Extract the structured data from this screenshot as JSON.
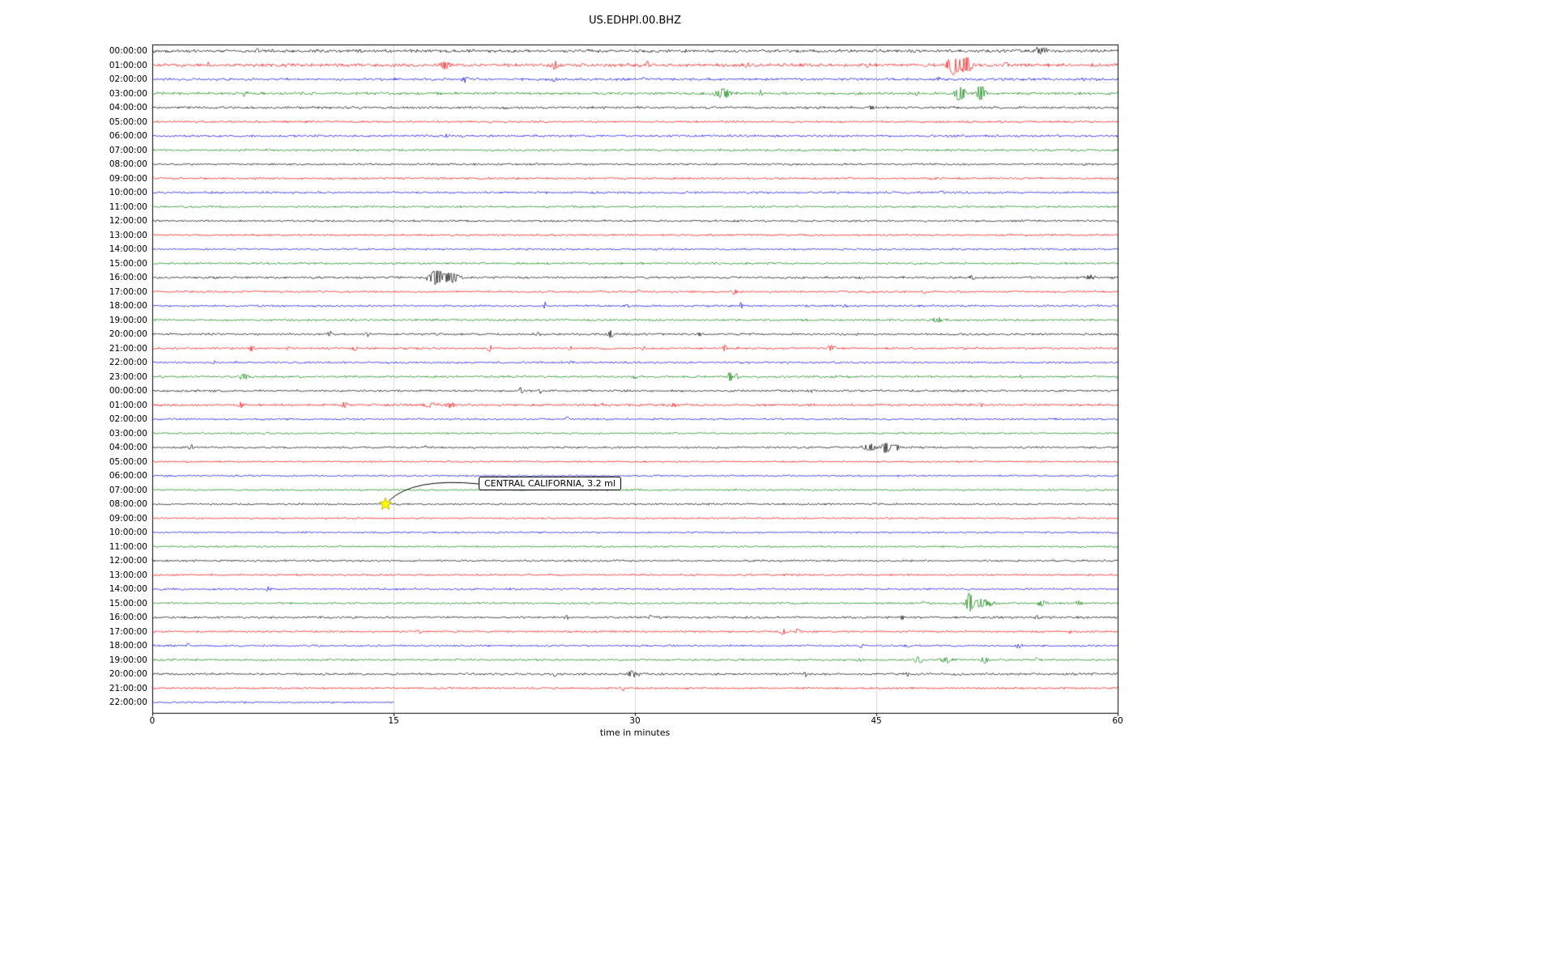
{
  "chart_data": {
    "type": "line",
    "subtype": "helicorder-dayplot",
    "title": "US.EDHPI.00.BHZ",
    "xlabel": "time in minutes",
    "x_range": [
      0,
      60
    ],
    "x_ticks": [
      0,
      15,
      30,
      45,
      60
    ],
    "grid_minutes": [
      15,
      30,
      45
    ],
    "grid_color": "#d9d9d9",
    "frame_color": "#000000",
    "colors": {
      "black": "#000000",
      "red": "#ff0000",
      "blue": "#0000ff",
      "green": "#008000"
    },
    "color_cycle": [
      "black",
      "red",
      "blue",
      "green"
    ],
    "rows": [
      {
        "label": "00:00:00",
        "color": "black",
        "noise": 1.5,
        "events": [
          [
            6.5,
            4,
            0.06
          ],
          [
            55.2,
            5,
            0.3
          ]
        ]
      },
      {
        "label": "01:00:00",
        "color": "red",
        "noise": 1.6,
        "events": [
          [
            3.5,
            4,
            0.08
          ],
          [
            18.2,
            5,
            0.2
          ],
          [
            25,
            5,
            0.15
          ],
          [
            30.8,
            4,
            0.1
          ],
          [
            37,
            4,
            0.1
          ],
          [
            40.3,
            3,
            0.1
          ],
          [
            44.5,
            3,
            0.1
          ],
          [
            49.8,
            14,
            0.25
          ],
          [
            50.6,
            9,
            0.3
          ],
          [
            53,
            3,
            0.2
          ]
        ]
      },
      {
        "label": "02:00:00",
        "color": "blue",
        "noise": 1.3,
        "events": [
          [
            19.5,
            4,
            0.15
          ],
          [
            25,
            3,
            0.1
          ],
          [
            30.5,
            2,
            0.1
          ],
          [
            48.8,
            3,
            0.1
          ]
        ]
      },
      {
        "label": "03:00:00",
        "color": "green",
        "noise": 1.3,
        "events": [
          [
            5.8,
            3,
            0.15
          ],
          [
            35.5,
            6,
            0.4
          ],
          [
            37.8,
            4,
            0.08
          ],
          [
            47.5,
            3,
            0.1
          ],
          [
            50.2,
            12,
            0.2
          ],
          [
            51.5,
            10,
            0.2
          ]
        ]
      },
      {
        "label": "04:00:00",
        "color": "black",
        "noise": 1.2,
        "events": [
          [
            22,
            1.5,
            0.1
          ],
          [
            44.7,
            2.5,
            0.1
          ]
        ]
      },
      {
        "label": "05:00:00",
        "color": "red",
        "noise": 1.1,
        "events": []
      },
      {
        "label": "06:00:00",
        "color": "blue",
        "noise": 1.1,
        "events": [
          [
            18.3,
            2,
            0.15
          ]
        ]
      },
      {
        "label": "07:00:00",
        "color": "green",
        "noise": 1.1,
        "events": []
      },
      {
        "label": "08:00:00",
        "color": "black",
        "noise": 1.0,
        "events": []
      },
      {
        "label": "09:00:00",
        "color": "red",
        "noise": 1.1,
        "events": []
      },
      {
        "label": "10:00:00",
        "color": "blue",
        "noise": 1.1,
        "events": [
          [
            49,
            2,
            0.1
          ]
        ]
      },
      {
        "label": "11:00:00",
        "color": "green",
        "noise": 1.0,
        "events": []
      },
      {
        "label": "12:00:00",
        "color": "black",
        "noise": 1.0,
        "events": []
      },
      {
        "label": "13:00:00",
        "color": "red",
        "noise": 1.0,
        "events": []
      },
      {
        "label": "14:00:00",
        "color": "blue",
        "noise": 1.0,
        "events": []
      },
      {
        "label": "15:00:00",
        "color": "green",
        "noise": 1.0,
        "events": []
      },
      {
        "label": "16:00:00",
        "color": "black",
        "noise": 1.1,
        "events": [
          [
            17.6,
            12,
            0.3
          ],
          [
            18.6,
            6,
            0.4
          ],
          [
            44,
            2,
            0.1
          ],
          [
            51,
            3,
            0.15
          ],
          [
            58.3,
            3,
            0.2
          ]
        ]
      },
      {
        "label": "17:00:00",
        "color": "red",
        "noise": 1.0,
        "events": [
          [
            30.2,
            3,
            0.1
          ],
          [
            36.2,
            3.5,
            0.1
          ],
          [
            48,
            2.5,
            0.1
          ]
        ]
      },
      {
        "label": "18:00:00",
        "color": "blue",
        "noise": 1.0,
        "events": [
          [
            24.4,
            4,
            0.08
          ],
          [
            29.6,
            3,
            0.08
          ],
          [
            36.6,
            4,
            0.08
          ],
          [
            43,
            3,
            0.08
          ]
        ]
      },
      {
        "label": "19:00:00",
        "color": "green",
        "noise": 1.0,
        "events": [
          [
            48.8,
            3,
            0.3
          ]
        ]
      },
      {
        "label": "20:00:00",
        "color": "black",
        "noise": 1.1,
        "events": [
          [
            11,
            3,
            0.15
          ],
          [
            13.4,
            2.5,
            0.1
          ],
          [
            24,
            2,
            0.1
          ],
          [
            28.5,
            4.5,
            0.15
          ],
          [
            34,
            3,
            0.1
          ]
        ]
      },
      {
        "label": "21:00:00",
        "color": "red",
        "noise": 1.1,
        "events": [
          [
            6.2,
            3.5,
            0.12
          ],
          [
            8.4,
            2.5,
            0.1
          ],
          [
            12.6,
            3,
            0.1
          ],
          [
            21,
            3.5,
            0.1
          ],
          [
            25.9,
            3.5,
            0.1
          ],
          [
            30.5,
            2,
            0.1
          ],
          [
            35.6,
            3.5,
            0.1
          ],
          [
            42.2,
            4,
            0.25
          ]
        ]
      },
      {
        "label": "22:00:00",
        "color": "blue",
        "noise": 1.0,
        "events": [
          [
            3.9,
            2.5,
            0.1
          ],
          [
            26,
            2,
            0.1
          ]
        ]
      },
      {
        "label": "23:00:00",
        "color": "green",
        "noise": 1.1,
        "events": [
          [
            5.7,
            4,
            0.25
          ],
          [
            30,
            2,
            0.1
          ],
          [
            35.9,
            7,
            0.1
          ],
          [
            36.3,
            6,
            0.08
          ],
          [
            54,
            2.5,
            0.1
          ]
        ]
      },
      {
        "label": "00:00:00",
        "color": "black",
        "noise": 1.1,
        "events": [
          [
            22.9,
            4,
            0.1
          ],
          [
            24.1,
            3,
            0.1
          ],
          [
            41,
            2,
            0.1
          ]
        ]
      },
      {
        "label": "01:00:00",
        "color": "red",
        "noise": 1.2,
        "events": [
          [
            5.5,
            3.5,
            0.12
          ],
          [
            12,
            3.5,
            0.15
          ],
          [
            17.3,
            4,
            0.25
          ],
          [
            18.5,
            3.5,
            0.2
          ],
          [
            28,
            2,
            0.1
          ],
          [
            32.4,
            3,
            0.1
          ],
          [
            51.5,
            3,
            0.1
          ]
        ]
      },
      {
        "label": "02:00:00",
        "color": "blue",
        "noise": 1.0,
        "events": [
          [
            25.8,
            3.5,
            0.08
          ]
        ]
      },
      {
        "label": "03:00:00",
        "color": "green",
        "noise": 0.9,
        "events": []
      },
      {
        "label": "04:00:00",
        "color": "black",
        "noise": 1.0,
        "events": [
          [
            2.4,
            3,
            0.1
          ],
          [
            17,
            2.5,
            0.08
          ],
          [
            44.6,
            5,
            0.3
          ],
          [
            45.6,
            9,
            0.15
          ],
          [
            46.2,
            4,
            0.2
          ]
        ]
      },
      {
        "label": "05:00:00",
        "color": "red",
        "noise": 0.9,
        "events": []
      },
      {
        "label": "06:00:00",
        "color": "blue",
        "noise": 0.9,
        "events": []
      },
      {
        "label": "07:00:00",
        "color": "green",
        "noise": 0.9,
        "events": []
      },
      {
        "label": "08:00:00",
        "color": "black",
        "noise": 0.9,
        "events": []
      },
      {
        "label": "09:00:00",
        "color": "red",
        "noise": 0.9,
        "events": []
      },
      {
        "label": "10:00:00",
        "color": "blue",
        "noise": 0.9,
        "events": []
      },
      {
        "label": "11:00:00",
        "color": "green",
        "noise": 0.9,
        "events": []
      },
      {
        "label": "12:00:00",
        "color": "black",
        "noise": 1.0,
        "events": []
      },
      {
        "label": "13:00:00",
        "color": "red",
        "noise": 1.0,
        "events": []
      },
      {
        "label": "14:00:00",
        "color": "blue",
        "noise": 1.0,
        "events": [
          [
            7.2,
            2,
            0.1
          ]
        ]
      },
      {
        "label": "15:00:00",
        "color": "green",
        "noise": 1.0,
        "events": [
          [
            47.9,
            2.5,
            0.1
          ],
          [
            50.8,
            12,
            0.15
          ],
          [
            51.6,
            5,
            0.5
          ],
          [
            55.3,
            4,
            0.2
          ],
          [
            57.6,
            3.5,
            0.15
          ]
        ]
      },
      {
        "label": "16:00:00",
        "color": "black",
        "noise": 1.1,
        "events": [
          [
            25.7,
            3,
            0.1
          ],
          [
            31,
            3.5,
            0.08
          ],
          [
            46.6,
            3,
            0.1
          ],
          [
            55,
            2.5,
            0.1
          ]
        ]
      },
      {
        "label": "17:00:00",
        "color": "red",
        "noise": 1.0,
        "events": [
          [
            16.6,
            3,
            0.1
          ],
          [
            39.2,
            3.5,
            0.15
          ],
          [
            40.1,
            3,
            0.1
          ],
          [
            57,
            2,
            0.1
          ]
        ]
      },
      {
        "label": "18:00:00",
        "color": "blue",
        "noise": 1.0,
        "events": [
          [
            2.2,
            3,
            0.08
          ],
          [
            44.1,
            3.5,
            0.1
          ],
          [
            47,
            2,
            0.1
          ],
          [
            53.8,
            3,
            0.15
          ]
        ]
      },
      {
        "label": "19:00:00",
        "color": "green",
        "noise": 1.0,
        "events": [
          [
            44,
            2,
            0.1
          ],
          [
            47.6,
            4,
            0.2
          ],
          [
            49.3,
            3.5,
            0.3
          ],
          [
            51.8,
            3.5,
            0.2
          ],
          [
            55,
            3,
            0.15
          ]
        ]
      },
      {
        "label": "20:00:00",
        "color": "black",
        "noise": 1.1,
        "events": [
          [
            25,
            3,
            0.1
          ],
          [
            29.8,
            4,
            0.3
          ],
          [
            40.6,
            3,
            0.1
          ],
          [
            47,
            2,
            0.1
          ]
        ]
      },
      {
        "label": "21:00:00",
        "color": "red",
        "noise": 1.0,
        "events": [
          [
            29.2,
            3.5,
            0.1
          ]
        ]
      },
      {
        "label": "22:00:00",
        "color": "blue",
        "noise": 0.9,
        "end": 15,
        "events": []
      }
    ],
    "annotation": {
      "text": "CENTRAL CALIFORNIA, 3.2 ml",
      "row_index": 32,
      "row_label": "08:00:00",
      "minute": 14.5,
      "marker": "star",
      "marker_color": "#ffff00",
      "marker_edge_color": "#c8b400"
    }
  }
}
